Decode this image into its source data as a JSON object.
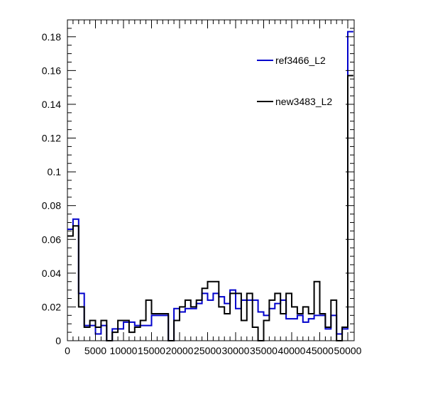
{
  "chart_data": {
    "type": "histogram",
    "title": "",
    "xlabel": "",
    "ylabel": "",
    "xlim": [
      0,
      50000
    ],
    "ylim": [
      0,
      0.19
    ],
    "bin_width": 1000,
    "grid": false,
    "legend_position": "top-right",
    "x_ticks": [
      0,
      5000,
      10000,
      15000,
      20000,
      25000,
      30000,
      35000,
      40000,
      45000,
      50000
    ],
    "x_tick_labels": [
      "0",
      "5000",
      "10000",
      "15000",
      "20000",
      "25000",
      "30000",
      "35000",
      "40000",
      "45000",
      "50000"
    ],
    "y_ticks": [
      0,
      0.02,
      0.04,
      0.06,
      0.08,
      0.1,
      0.12,
      0.14,
      0.16,
      0.18
    ],
    "y_tick_labels": [
      "0",
      "0.02",
      "0.04",
      "0.06",
      "0.08",
      "0.1",
      "0.12",
      "0.14",
      "0.16",
      "0.18"
    ],
    "series": [
      {
        "name": "ref3466_L2",
        "color": "#0000cc",
        "values": [
          0.066,
          0.072,
          0.028,
          0.009,
          0.009,
          0.004,
          0.009,
          0.0,
          0.007,
          0.007,
          0.011,
          0.011,
          0.009,
          0.009,
          0.009,
          0.015,
          0.015,
          0.015,
          0.0,
          0.019,
          0.017,
          0.019,
          0.019,
          0.022,
          0.028,
          0.024,
          0.028,
          0.026,
          0.022,
          0.03,
          0.019,
          0.024,
          0.024,
          0.024,
          0.017,
          0.015,
          0.019,
          0.022,
          0.024,
          0.013,
          0.013,
          0.015,
          0.011,
          0.013,
          0.015,
          0.015,
          0.007,
          0.015,
          0.004,
          0.007,
          0.183
        ]
      },
      {
        "name": "new3483_L2",
        "color": "#000000",
        "values": [
          0.062,
          0.068,
          0.02,
          0.008,
          0.012,
          0.008,
          0.012,
          0.0,
          0.005,
          0.012,
          0.012,
          0.005,
          0.008,
          0.012,
          0.024,
          0.016,
          0.016,
          0.016,
          0.0,
          0.012,
          0.02,
          0.024,
          0.02,
          0.024,
          0.031,
          0.035,
          0.035,
          0.02,
          0.016,
          0.028,
          0.028,
          0.012,
          0.028,
          0.008,
          0.0,
          0.012,
          0.024,
          0.028,
          0.016,
          0.028,
          0.02,
          0.016,
          0.02,
          0.016,
          0.035,
          0.016,
          0.008,
          0.024,
          0.0,
          0.008,
          0.157
        ]
      }
    ]
  }
}
